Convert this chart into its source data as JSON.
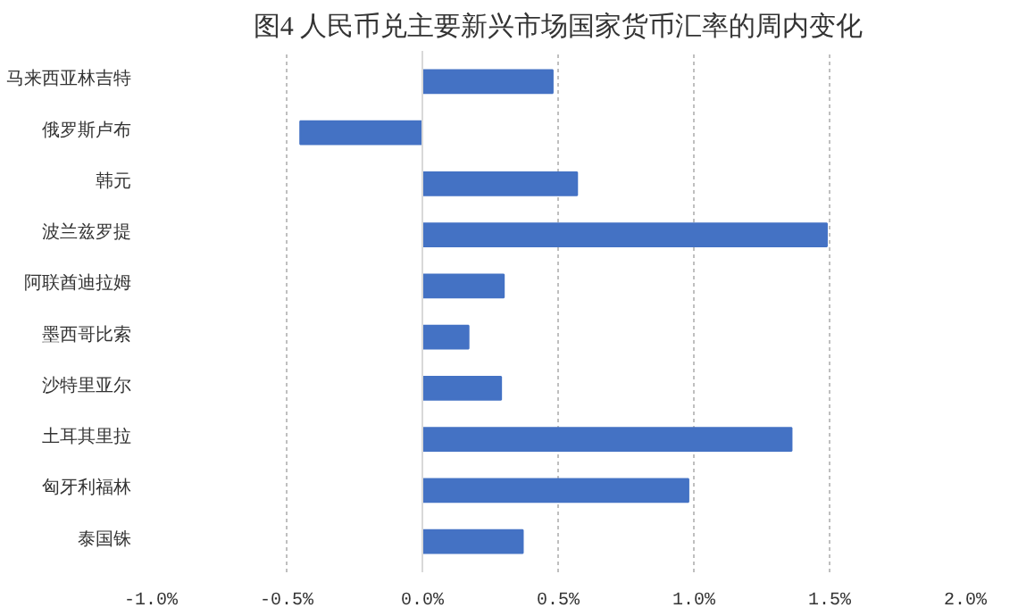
{
  "chart_data": {
    "type": "bar",
    "orientation": "horizontal",
    "title": "图4 人民币兑主要新兴市场国家货币汇率的周内变化",
    "categories": [
      "马来西亚林吉特",
      "俄罗斯卢布",
      "韩元",
      "波兰兹罗提",
      "阿联酋迪拉姆",
      "墨西哥比索",
      "沙特里亚尔",
      "土耳其里拉",
      "匈牙利福林",
      "泰国铢"
    ],
    "values": [
      0.48,
      -0.45,
      0.57,
      1.49,
      0.3,
      0.17,
      0.29,
      1.36,
      0.98,
      0.37
    ],
    "color": "#4472c4",
    "xlim": [
      -1.0,
      2.0
    ],
    "xticks": [
      {
        "value": -1.0,
        "label": "-1.0%"
      },
      {
        "value": -0.5,
        "label": "-0.5%"
      },
      {
        "value": 0,
        "label": "0.0%"
      },
      {
        "value": 0.5,
        "label": "0.5%"
      },
      {
        "value": 1.0,
        "label": "1.0%"
      },
      {
        "value": 1.5,
        "label": "1.5%"
      },
      {
        "value": 2.0,
        "label": "2.0%"
      }
    ],
    "grid": "x"
  }
}
